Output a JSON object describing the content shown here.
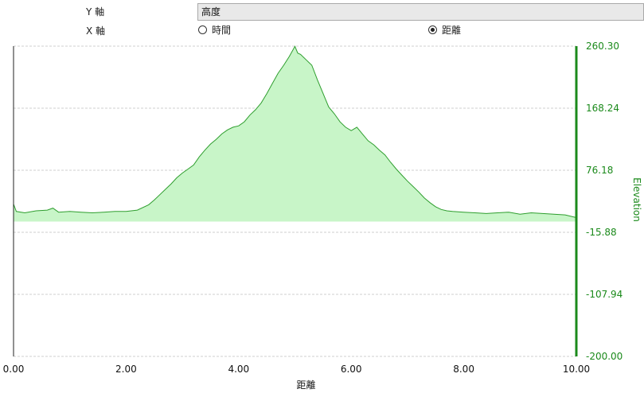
{
  "controls": {
    "y_axis_label": "Y 軸",
    "y_axis_value": "高度",
    "x_axis_label": "X 軸",
    "x_options": [
      {
        "label": "時間",
        "checked": false
      },
      {
        "label": "距離",
        "checked": true
      }
    ]
  },
  "chart_data": {
    "type": "area",
    "xlabel": "距離",
    "ylabel": "Elevation",
    "xlim": [
      0,
      10
    ],
    "ylim": [
      -200,
      260.3
    ],
    "x_ticks": [
      "0.00",
      "2.00",
      "4.00",
      "6.00",
      "8.00",
      "10.00"
    ],
    "y_ticks": [
      "260.30",
      "168.24",
      "76.18",
      "-15.88",
      "-107.94",
      "-200.00"
    ],
    "grid": true,
    "series": [
      {
        "x": [
          0.0,
          0.05,
          0.2,
          0.4,
          0.6,
          0.7,
          0.8,
          1.0,
          1.2,
          1.4,
          1.6,
          1.8,
          2.0,
          2.2,
          2.4,
          2.5,
          2.6,
          2.7,
          2.8,
          2.9,
          3.0,
          3.1,
          3.2,
          3.3,
          3.4,
          3.5,
          3.6,
          3.7,
          3.8,
          3.9,
          4.0,
          4.1,
          4.2,
          4.3,
          4.4,
          4.5,
          4.6,
          4.7,
          4.8,
          4.9,
          5.0,
          5.05,
          5.1,
          5.2,
          5.3,
          5.4,
          5.5,
          5.6,
          5.7,
          5.8,
          5.9,
          6.0,
          6.1,
          6.2,
          6.3,
          6.4,
          6.5,
          6.6,
          6.7,
          6.8,
          6.9,
          7.0,
          7.1,
          7.2,
          7.3,
          7.4,
          7.5,
          7.6,
          7.7,
          7.8,
          8.0,
          8.2,
          8.4,
          8.6,
          8.8,
          9.0,
          9.2,
          9.4,
          9.6,
          9.8,
          10.0
        ],
        "y": [
          26,
          15,
          13,
          16,
          17,
          20,
          14,
          15,
          14,
          13,
          14,
          15,
          15,
          17,
          25,
          32,
          40,
          48,
          56,
          65,
          72,
          78,
          84,
          96,
          106,
          115,
          122,
          130,
          136,
          140,
          142,
          148,
          158,
          166,
          176,
          190,
          205,
          220,
          232,
          245,
          260,
          250,
          248,
          240,
          232,
          210,
          190,
          170,
          160,
          148,
          140,
          135,
          140,
          130,
          120,
          114,
          106,
          99,
          88,
          78,
          69,
          60,
          52,
          44,
          35,
          28,
          22,
          18,
          16,
          15,
          14,
          13,
          12,
          13,
          14,
          11,
          13,
          12,
          11,
          10,
          6
        ],
        "line_color": "#2e9e2e",
        "fill_color": "#c8f5c8",
        "baseline": 0
      }
    ],
    "axis_color": "#1b8a1b"
  }
}
